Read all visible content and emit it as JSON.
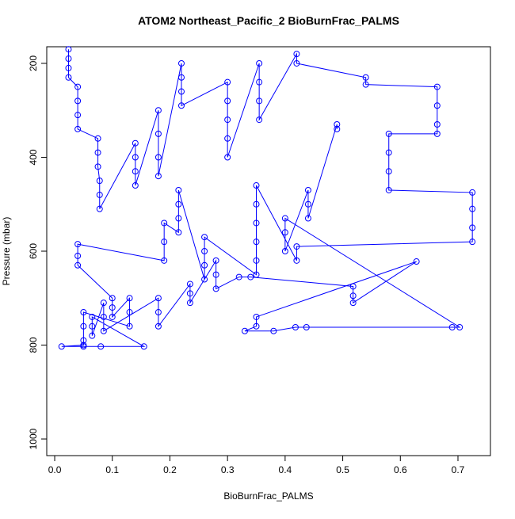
{
  "chart_data": {
    "type": "scatter",
    "title": "ATOM2 Northeast_Pacific_2 BioBurnFrac_PALMS",
    "x_label": "BioBurnFrac_PALMS",
    "y_label": "Pressure (mbar)",
    "xlim": [
      -0.0138,
      0.7564
    ],
    "ylim": [
      1035.4,
      164.6
    ],
    "y_reversed": true,
    "xticks": [
      {
        "value": 0,
        "label": "0.0"
      },
      0.1,
      0.2,
      0.3,
      0.4,
      0.5,
      0.6,
      0.7
    ],
    "yticks": [
      200,
      400,
      600,
      800,
      1000
    ],
    "connect_points": true,
    "series": [
      {
        "color": "#0000ff",
        "x": [
          0.024,
          0.024,
          0.024,
          0.024,
          0.04,
          0.04,
          0.04,
          0.04,
          0.075,
          0.075,
          0.075,
          0.078,
          0.078,
          0.078,
          0.14,
          0.14,
          0.14,
          0.14,
          0.18,
          0.18,
          0.18,
          0.18,
          0.22,
          0.22,
          0.22,
          0.22,
          0.3,
          0.3,
          0.3,
          0.3,
          0.3,
          0.355,
          0.355,
          0.355,
          0.355,
          0.42,
          0.42,
          0.54,
          0.54,
          0.664,
          0.664,
          0.664,
          0.664,
          0.58,
          0.58,
          0.58,
          0.58,
          0.725,
          0.725,
          0.725,
          0.725,
          0.42,
          0.42,
          0.35,
          0.35,
          0.35,
          0.35,
          0.35,
          0.35,
          0.26,
          0.26,
          0.26,
          0.26,
          0.215,
          0.215,
          0.215,
          0.215,
          0.19,
          0.19,
          0.19,
          0.04,
          0.04,
          0.04,
          0.1,
          0.1,
          0.1,
          0.13,
          0.13,
          0.13,
          0.05,
          0.05,
          0.05,
          0.05,
          0.012,
          0.05,
          0.08,
          0.155,
          0.065,
          0.065,
          0.065,
          0.085,
          0.085,
          0.085,
          0.18,
          0.18,
          0.18,
          0.235,
          0.235,
          0.235,
          0.28,
          0.28,
          0.28,
          0.32,
          0.34,
          0.518,
          0.518,
          0.518,
          0.628,
          0.35,
          0.35,
          0.33,
          0.38,
          0.418,
          0.437,
          0.69,
          0.703,
          0.4,
          0.4,
          0.4,
          0.44,
          0.44,
          0.44,
          0.49,
          0.49
        ],
        "values": [
          170,
          190,
          210,
          230,
          250,
          280,
          310,
          340,
          360,
          390,
          420,
          450,
          480,
          510,
          370,
          400,
          430,
          460,
          300,
          350,
          400,
          440,
          200,
          230,
          260,
          290,
          240,
          280,
          320,
          360,
          400,
          200,
          240,
          280,
          320,
          180,
          200,
          230,
          245,
          250,
          290,
          330,
          350,
          350,
          390,
          430,
          470,
          475,
          510,
          550,
          580,
          590,
          620,
          460,
          500,
          540,
          580,
          620,
          650,
          570,
          600,
          630,
          660,
          470,
          500,
          530,
          560,
          540,
          580,
          620,
          585,
          610,
          630,
          700,
          720,
          740,
          700,
          730,
          760,
          730,
          760,
          790,
          800,
          803,
          803,
          803,
          803,
          740,
          760,
          780,
          710,
          740,
          770,
          700,
          730,
          760,
          670,
          690,
          710,
          620,
          650,
          680,
          655,
          655,
          675,
          695,
          710,
          622,
          740,
          760,
          770,
          770,
          762,
          762,
          762,
          762,
          530,
          560,
          600,
          470,
          500,
          530,
          330,
          340
        ]
      }
    ]
  }
}
